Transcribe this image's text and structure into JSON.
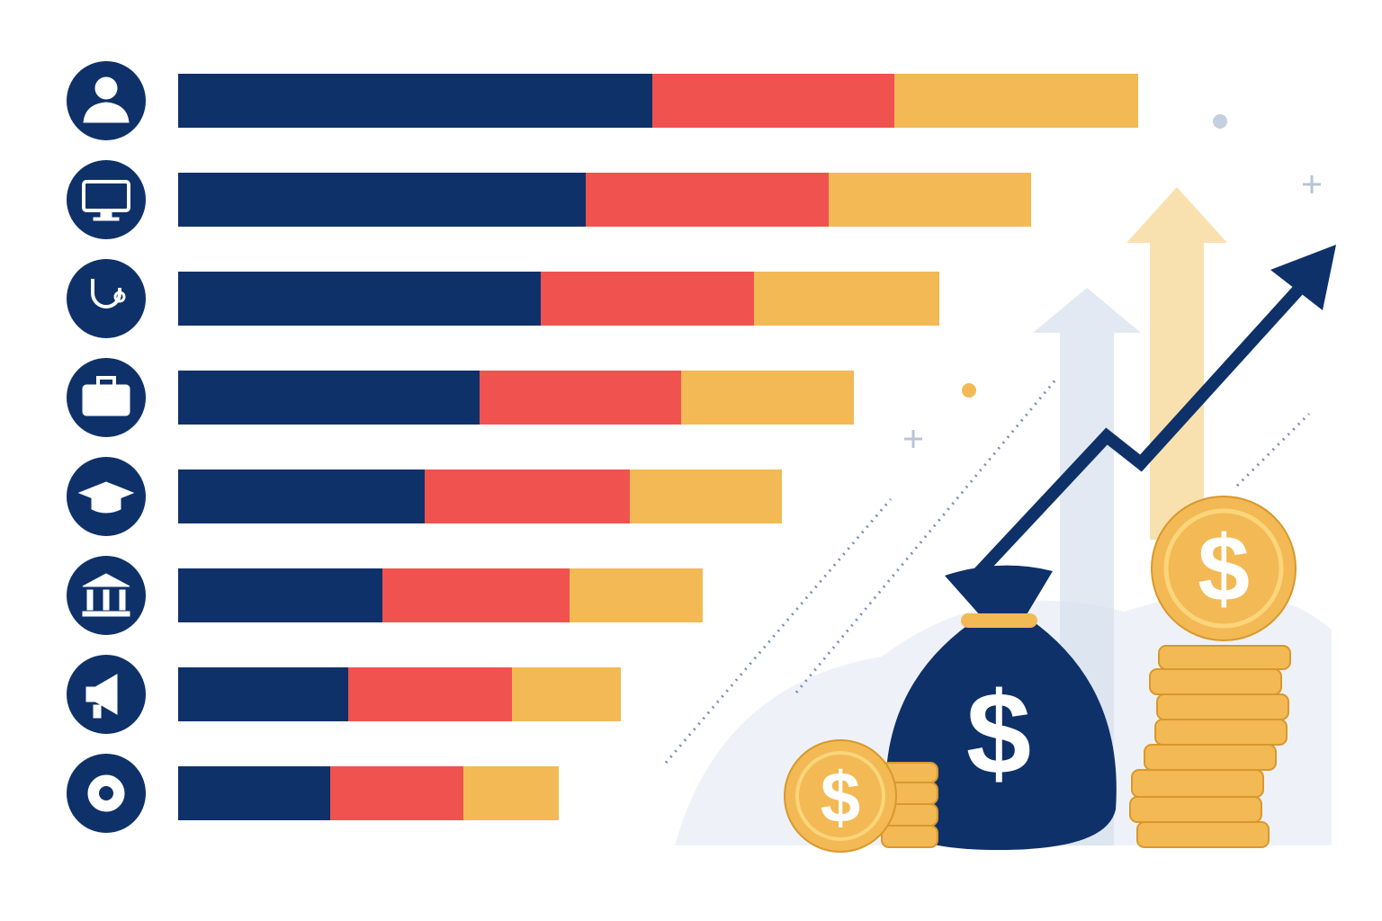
{
  "chart_data": {
    "type": "stacked_bar_horizontal",
    "series": [
      {
        "color": "#0f3169",
        "values": [
          52.7,
          45.3,
          40.3,
          33.5,
          27.4,
          22.7,
          18.9,
          16.9
        ]
      },
      {
        "color": "#f0524f",
        "values": [
          26.9,
          27.0,
          23.7,
          22.4,
          22.8,
          20.8,
          18.2,
          14.8
        ]
      },
      {
        "color": "#f2b955",
        "values": [
          27.1,
          22.5,
          20.6,
          19.2,
          16.9,
          14.8,
          12.1,
          10.6
        ]
      }
    ]
  }
}
